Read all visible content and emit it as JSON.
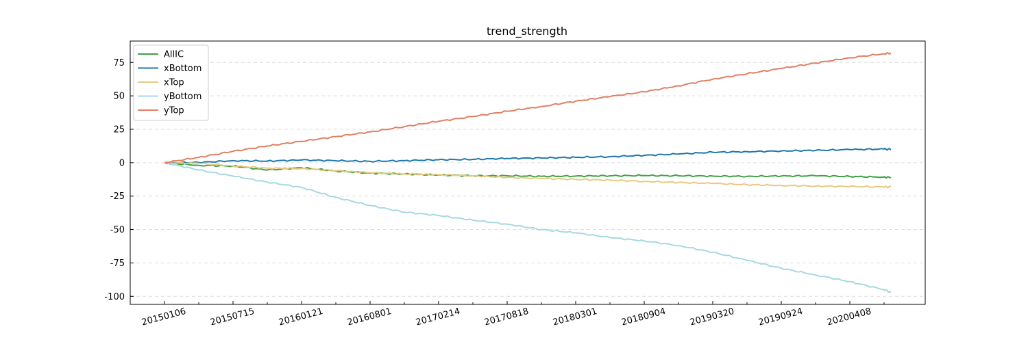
{
  "chart_data": {
    "type": "line",
    "title": "trend_strength",
    "xlabel": "",
    "ylabel": "",
    "x_tick_labels": [
      "20150106",
      "20150715",
      "20160121",
      "20160801",
      "20170214",
      "20170818",
      "20180301",
      "20180904",
      "20190320",
      "20190924",
      "20200408"
    ],
    "y_ticks": [
      75,
      50,
      25,
      0,
      -25,
      -50,
      -75,
      -100
    ],
    "y_tick_labels": [
      "75",
      "50",
      "25",
      "0",
      "-25",
      "-50",
      "-75",
      "-100"
    ],
    "xlim": [
      -0.5,
      11.1
    ],
    "ylim": [
      -106,
      91
    ],
    "grid": "horizontal-dashed",
    "legend_position": "top-left",
    "x": [
      0,
      0.5,
      1,
      1.5,
      2,
      2.5,
      3,
      3.5,
      4,
      4.5,
      5,
      5.5,
      6,
      6.5,
      7,
      7.5,
      8,
      8.5,
      9,
      9.5,
      10,
      10.5,
      10.6
    ],
    "series": [
      {
        "name": "AllIC",
        "color": "#3ea243",
        "values": [
          0,
          -2,
          -2.5,
          -5.5,
          -3.8,
          -6.2,
          -7.8,
          -8.5,
          -9.2,
          -9.8,
          -9.8,
          -10.2,
          -10.0,
          -9.8,
          -9.6,
          -9.8,
          -10.0,
          -10.2,
          -10.0,
          -9.8,
          -10.3,
          -10.8,
          -11.0
        ]
      },
      {
        "name": "xBottom",
        "color": "#1c78a9",
        "values": [
          0,
          0.2,
          1.5,
          1.2,
          2.0,
          1.5,
          1.0,
          1.5,
          2.2,
          2.5,
          3.2,
          3.5,
          4.0,
          4.5,
          5.5,
          6.5,
          7.8,
          8.2,
          8.8,
          9.2,
          9.8,
          10.2,
          10.0
        ]
      },
      {
        "name": "xTop",
        "color": "#e8c97f",
        "values": [
          0,
          -0.5,
          -2.5,
          -4.0,
          -4.5,
          -6.0,
          -7.5,
          -8.5,
          -9.0,
          -9.8,
          -11.0,
          -11.8,
          -12.5,
          -13.0,
          -14.0,
          -14.8,
          -15.5,
          -16.5,
          -17.0,
          -17.5,
          -17.8,
          -18.2,
          -18.0
        ]
      },
      {
        "name": "yBottom",
        "color": "#a6d8e2",
        "values": [
          0,
          -5.5,
          -10.0,
          -14.5,
          -18.5,
          -26.0,
          -32.0,
          -37.0,
          -39.5,
          -43.0,
          -46.0,
          -50.0,
          -52.5,
          -56.0,
          -58.5,
          -62.0,
          -67.0,
          -73.0,
          -79.0,
          -84.0,
          -89.0,
          -95.0,
          -97.0
        ]
      },
      {
        "name": "yTop",
        "color": "#e07f63",
        "values": [
          0,
          4.0,
          8.5,
          12.5,
          16.0,
          19.5,
          23.0,
          27.0,
          31.0,
          34.5,
          38.5,
          42.0,
          46.0,
          49.5,
          53.0,
          57.5,
          62.5,
          66.5,
          70.5,
          74.5,
          78.5,
          81.5,
          82.0
        ]
      }
    ]
  }
}
